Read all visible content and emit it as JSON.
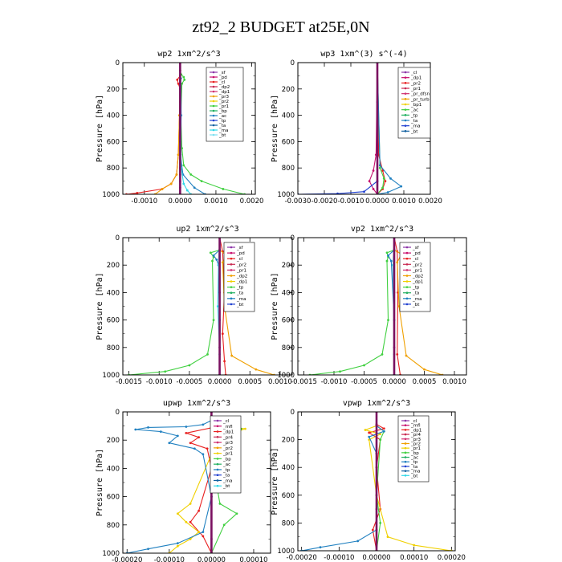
{
  "figure_title": "zt92_2  BUDGET at25E,0N",
  "chart_data": [
    {
      "type": "line",
      "title": "wp2   1xm^2/s^3",
      "ylabel": "Pressure [hPa]",
      "ylim": [
        1000,
        0
      ],
      "yticks": [
        0,
        200,
        400,
        600,
        800,
        1000
      ],
      "xlim": [
        -0.0016,
        0.0021
      ],
      "xticks": [
        -0.001,
        0.0,
        0.001,
        0.002
      ],
      "xtick_labels": [
        "-0.0010",
        "0.0000",
        "0.0010",
        "0.0020"
      ],
      "legend": [
        "_sf",
        "_pd",
        "_cl",
        "_dp2",
        "_dp1",
        "_pr3",
        "_pr2",
        "_pr1",
        "_bp",
        "_ac",
        "_tp",
        "_ta",
        "_ma",
        "_bt"
      ],
      "series": [
        {
          "name": "_sf",
          "color": "#8c35a8",
          "x": [
            0,
            0,
            0,
            0,
            0,
            0,
            0
          ],
          "y": [
            0,
            200,
            400,
            600,
            800,
            900,
            1000
          ]
        },
        {
          "name": "_pd",
          "color": "#c8106e",
          "x": [
            0,
            0,
            0,
            0,
            0,
            0
          ],
          "y": [
            0,
            300,
            600,
            850,
            950,
            1000
          ]
        },
        {
          "name": "_cl",
          "color": "#e82020",
          "x": [
            0,
            0,
            -8e-05,
            -5e-05,
            0,
            -2e-05,
            -5e-05,
            -0.0001,
            -0.00025,
            -0.0005,
            -0.0012,
            -0.0015
          ],
          "y": [
            60,
            100,
            130,
            160,
            200,
            400,
            700,
            850,
            920,
            960,
            990,
            1000
          ]
        },
        {
          "name": "_dp1",
          "color": "#f0a000",
          "x": [
            0,
            -2e-05,
            -5e-05,
            -0.0001,
            -0.00025,
            -0.0005,
            -0.0007
          ],
          "y": [
            0,
            400,
            700,
            850,
            920,
            960,
            1000
          ]
        },
        {
          "name": "_bp",
          "color": "#40d040",
          "x": [
            0,
            3e-05,
            0.0001,
            0.00012,
            5e-05,
            2e-05,
            5e-05,
            0.0001,
            0.0003,
            0.0006,
            0.0012,
            0.0018
          ],
          "y": [
            60,
            90,
            110,
            130,
            160,
            400,
            650,
            780,
            850,
            900,
            960,
            1000
          ]
        },
        {
          "name": "_ac",
          "color": "#2080c0",
          "x": [
            0,
            2e-05,
            3e-05,
            1e-05,
            8e-05,
            0.0004,
            0.0007
          ],
          "y": [
            0,
            120,
            400,
            700,
            850,
            950,
            1000
          ]
        },
        {
          "name": "_bt",
          "color": "#30d8e8",
          "x": [
            0,
            1e-05,
            3e-05,
            0.0001,
            0.0002,
            0.0003
          ],
          "y": [
            0,
            400,
            800,
            920,
            970,
            1000
          ]
        }
      ]
    },
    {
      "type": "line",
      "title": "wp3   1xm^(3) s^(-4)",
      "ylabel": "Pressure [hPa]",
      "ylim": [
        1000,
        0
      ],
      "yticks": [
        0,
        200,
        400,
        600,
        800,
        1000
      ],
      "xlim": [
        -0.003,
        0.002
      ],
      "xticks": [
        -0.003,
        -0.002,
        -0.001,
        0.0,
        0.001,
        0.002
      ],
      "xtick_labels": [
        "-0.0030",
        "-0.0020",
        "-0.0010",
        "0.0000",
        "0.0010",
        "0.0020"
      ],
      "legend": [
        "_cl",
        "_dp1",
        "_pr2",
        "_pr1",
        "_pr_dfsn",
        "_pr_turb",
        "_bp1",
        "_ac",
        "_tp",
        "_ta",
        "_ma",
        "_bt"
      ],
      "series": [
        {
          "name": "_cl",
          "color": "#8c35a8",
          "x": [
            0,
            0,
            0,
            0,
            0
          ],
          "y": [
            0,
            300,
            600,
            900,
            1000
          ]
        },
        {
          "name": "_dp1",
          "color": "#c8106e",
          "x": [
            0,
            -5e-05,
            -0.00015,
            -0.0003,
            -0.00015,
            0
          ],
          "y": [
            0,
            700,
            820,
            900,
            960,
            1000
          ]
        },
        {
          "name": "_pr2",
          "color": "#e82020",
          "x": [
            0,
            5e-05,
            0.0002,
            0.0003,
            0.0002,
            0
          ],
          "y": [
            0,
            700,
            820,
            900,
            960,
            1000
          ]
        },
        {
          "name": "_bp1",
          "color": "#40d040",
          "x": [
            0,
            0.0001,
            0.00025,
            0.0002,
            0
          ],
          "y": [
            0,
            800,
            880,
            950,
            1000
          ]
        },
        {
          "name": "_tp",
          "color": "#2040d0",
          "x": [
            0,
            0,
            -0.0005,
            -0.0015,
            -0.003
          ],
          "y": [
            0,
            900,
            980,
            995,
            1000
          ]
        },
        {
          "name": "_ta",
          "color": "#2080c0",
          "x": [
            0,
            0.0001,
            0.0005,
            0.0009,
            0.0004,
            0
          ],
          "y": [
            0,
            780,
            880,
            940,
            985,
            1000
          ]
        }
      ]
    },
    {
      "type": "line",
      "title": "up2   1xm^2/s^3",
      "ylabel": "Pressure [hPa]",
      "ylim": [
        1000,
        0
      ],
      "yticks": [
        0,
        200,
        400,
        600,
        800,
        1000
      ],
      "xlim": [
        -0.0016,
        0.0012
      ],
      "xticks": [
        -0.0015,
        -0.001,
        -0.0005,
        0.0,
        0.0005,
        0.001
      ],
      "xtick_labels": [
        "-0.0015",
        "-0.0010",
        "-0.0005",
        "0.0000",
        "0.0005",
        "0.0010"
      ],
      "legend": [
        "_sf",
        "_pd",
        "_cl",
        "_pr2",
        "_pr1",
        "_dp2",
        "_dp1",
        "_tp",
        "_ta",
        "_ma",
        "_bt"
      ],
      "series": [
        {
          "name": "_sf",
          "color": "#8c35a8",
          "x": [
            0,
            0,
            0,
            0
          ],
          "y": [
            0,
            400,
            800,
            1000
          ]
        },
        {
          "name": "_cl",
          "color": "#e82020",
          "x": [
            0,
            5e-05,
            8e-05,
            5e-05,
            8e-05,
            0.0001
          ],
          "y": [
            0,
            100,
            400,
            700,
            900,
            1000
          ]
        },
        {
          "name": "_pr2",
          "color": "#f0a000",
          "x": [
            0,
            0.00012,
            5e-05,
            8e-05,
            0.0002,
            0.0006,
            0.0009
          ],
          "y": [
            90,
            130,
            180,
            500,
            860,
            960,
            1000
          ]
        },
        {
          "name": "_dp1",
          "color": "#40d040",
          "x": [
            0,
            -0.00015,
            -0.0001,
            -0.00012,
            -0.0001,
            -0.0002,
            -0.0005,
            -0.0009,
            -0.0015
          ],
          "y": [
            90,
            110,
            140,
            170,
            600,
            850,
            930,
            975,
            1000
          ]
        },
        {
          "name": "_tp",
          "color": "#2080c0",
          "x": [
            0,
            -0.0001,
            -5e-05,
            -2e-05,
            0,
            0
          ],
          "y": [
            90,
            130,
            160,
            200,
            600,
            1000
          ]
        },
        {
          "name": "_bt",
          "color": "#30d8e8",
          "x": [
            0,
            -2e-05,
            -3e-05,
            0,
            0
          ],
          "y": [
            0,
            200,
            500,
            850,
            1000
          ]
        }
      ]
    },
    {
      "type": "line",
      "title": "vp2   1xm^2/s^3",
      "ylabel": "Pressure [hPa]",
      "ylim": [
        1000,
        0
      ],
      "yticks": [
        0,
        200,
        400,
        600,
        800,
        1000
      ],
      "xlim": [
        -0.0016,
        0.0012
      ],
      "xticks": [
        -0.0015,
        -0.001,
        -0.0005,
        0.0,
        0.0005,
        0.001
      ],
      "xtick_labels": [
        "-0.0015",
        "-0.0010",
        "-0.0005",
        "0.0000",
        "0.0005",
        "0.0010"
      ],
      "legend": [
        "_sf",
        "_pd",
        "_cl",
        "_pr2",
        "_pr1",
        "_dp2",
        "_dp1",
        "_tp",
        "_ta",
        "_ma",
        "_bt"
      ],
      "series": [
        {
          "name": "_sf",
          "color": "#8c35a8",
          "x": [
            0,
            0,
            0,
            0
          ],
          "y": [
            0,
            400,
            800,
            1000
          ]
        },
        {
          "name": "_cl",
          "color": "#e82020",
          "x": [
            0,
            5e-05,
            6e-05,
            5e-05,
            0.0001
          ],
          "y": [
            0,
            100,
            400,
            850,
            1000
          ]
        },
        {
          "name": "_pr2",
          "color": "#f0a000",
          "x": [
            0,
            0.00012,
            5e-05,
            8e-05,
            0.0002,
            0.0005,
            0.0008
          ],
          "y": [
            90,
            120,
            180,
            500,
            860,
            960,
            1000
          ]
        },
        {
          "name": "_dp1",
          "color": "#40d040",
          "x": [
            0,
            -0.00012,
            -0.0001,
            -0.00012,
            -0.0001,
            -0.0002,
            -0.0005,
            -0.0009,
            -0.0014
          ],
          "y": [
            90,
            110,
            140,
            170,
            600,
            850,
            930,
            975,
            1000
          ]
        },
        {
          "name": "_tp",
          "color": "#2080c0",
          "x": [
            0,
            -0.0001,
            -5e-05,
            0,
            0
          ],
          "y": [
            90,
            130,
            170,
            600,
            1000
          ]
        },
        {
          "name": "_bt",
          "color": "#30d8e8",
          "x": [
            0,
            -2e-05,
            0,
            0
          ],
          "y": [
            0,
            200,
            850,
            1000
          ]
        }
      ]
    },
    {
      "type": "line",
      "title": "upwp   1xm^2/s^3",
      "ylabel": "Pressure [hPa]",
      "ylim": [
        1000,
        0
      ],
      "yticks": [
        0,
        200,
        400,
        600,
        800,
        1000
      ],
      "xlim": [
        -0.00021,
        0.00014
      ],
      "xticks": [
        -0.0002,
        -0.0001,
        0.0,
        0.0001
      ],
      "xtick_labels": [
        "-0.00020",
        "-0.00010",
        "0.00000",
        "0.00010"
      ],
      "legend": [
        "_cl",
        "_mfl",
        "_dp1",
        "_pr4",
        "_pr3",
        "_pr2",
        "_pr1",
        "_bp",
        "_ac",
        "_tp",
        "_ta",
        "_ma",
        "_bt"
      ],
      "series": [
        {
          "name": "_cl",
          "color": "#8c35a8",
          "x": [
            0,
            0,
            0,
            0,
            0
          ],
          "y": [
            0,
            300,
            600,
            900,
            1000
          ]
        },
        {
          "name": "_dp1",
          "color": "#e82020",
          "x": [
            0,
            2e-05,
            -6e-05,
            -3e-05,
            -5e-05,
            -1e-05,
            0,
            -3e-05,
            -5e-05,
            -2e-05,
            0
          ],
          "y": [
            60,
            100,
            150,
            180,
            220,
            260,
            400,
            700,
            780,
            880,
            1000
          ]
        },
        {
          "name": "_pr3",
          "color": "#f0d000",
          "x": [
            0,
            2e-05,
            5e-05,
            8e-05,
            6e-05,
            3e-05,
            0,
            -5e-05,
            -8e-05,
            -6e-05,
            -3e-05,
            -5e-05,
            -8e-05,
            -0.0001
          ],
          "y": [
            60,
            100,
            110,
            120,
            140,
            170,
            300,
            650,
            720,
            780,
            850,
            900,
            950,
            1000
          ]
        },
        {
          "name": "_bp",
          "color": "#40d040",
          "x": [
            0,
            5e-05,
            7e-05,
            3e-05,
            0,
            2e-05,
            6e-05,
            3e-05,
            0
          ],
          "y": [
            60,
            90,
            120,
            160,
            300,
            650,
            720,
            800,
            1000
          ]
        },
        {
          "name": "_ta",
          "color": "#2080c0",
          "x": [
            0,
            -2e-05,
            -6e-05,
            -0.00015,
            -0.00018,
            -0.00012,
            -8e-05,
            -0.0001,
            -4e-05,
            -2e-05,
            0,
            -2e-05,
            -8e-05,
            -0.00015,
            -0.0002
          ],
          "y": [
            60,
            90,
            105,
            110,
            125,
            140,
            170,
            220,
            260,
            300,
            600,
            850,
            930,
            970,
            1000
          ]
        }
      ]
    },
    {
      "type": "line",
      "title": "vpwp   1xm^2/s^3",
      "ylabel": "Pressure [hPa]",
      "ylim": [
        1000,
        0
      ],
      "yticks": [
        0,
        200,
        400,
        600,
        800,
        1000
      ],
      "xlim": [
        -0.00021,
        0.00021
      ],
      "xticks": [
        -0.0002,
        -0.0001,
        0.0,
        0.0001,
        0.0002
      ],
      "xtick_labels": [
        "-0.00020",
        "-0.00010",
        "0.00000",
        "0.00010",
        "0.00020"
      ],
      "legend": [
        "_cl",
        "_mfl",
        "_dp1",
        "_pr4",
        "_pr3",
        "_pr2",
        "_pr1",
        "_bp",
        "_ac",
        "_tp",
        "_ta",
        "_ma",
        "_bt"
      ],
      "series": [
        {
          "name": "_cl",
          "color": "#8c35a8",
          "x": [
            0,
            0,
            0,
            0
          ],
          "y": [
            0,
            300,
            700,
            1000
          ]
        },
        {
          "name": "_dp1",
          "color": "#e82020",
          "x": [
            0,
            2e-05,
            -2e-05,
            1e-05,
            0,
            1e-05,
            -1e-05,
            0
          ],
          "y": [
            90,
            120,
            150,
            200,
            400,
            700,
            850,
            1000
          ]
        },
        {
          "name": "_pr3",
          "color": "#f0d000",
          "x": [
            0,
            -3e-05,
            1e-05,
            -2e-05,
            0,
            3e-05,
            0.0001,
            0.0002
          ],
          "y": [
            100,
            130,
            160,
            200,
            600,
            900,
            960,
            1000
          ]
        },
        {
          "name": "_bp",
          "color": "#40d040",
          "x": [
            0,
            2e-05,
            1e-05,
            0,
            1e-05,
            0
          ],
          "y": [
            100,
            140,
            200,
            600,
            800,
            1000
          ]
        },
        {
          "name": "_ta",
          "color": "#2080c0",
          "x": [
            0,
            2e-05,
            -2e-05,
            0,
            0,
            -5e-05,
            -0.00015,
            -0.0002
          ],
          "y": [
            100,
            140,
            180,
            300,
            850,
            930,
            975,
            1000
          ]
        }
      ]
    }
  ]
}
